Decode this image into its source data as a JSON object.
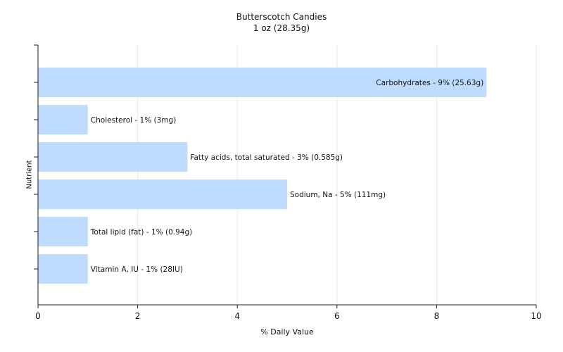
{
  "chart_data": {
    "type": "bar",
    "orientation": "horizontal",
    "title": "Butterscotch Candies",
    "subtitle": "1 oz (28.35g)",
    "xlabel": "% Daily Value",
    "ylabel": "Nutrient",
    "xlim": [
      0,
      10
    ],
    "xticks": [
      0,
      2,
      4,
      6,
      8,
      10
    ],
    "grid": true,
    "legend": "none",
    "bar_color": "#bfdcff",
    "categories": [
      "Carbohydrates",
      "Cholesterol",
      "Fatty acids, total saturated",
      "Sodium, Na",
      "Total lipid (fat)",
      "Vitamin A, IU"
    ],
    "values": [
      9,
      1,
      3,
      5,
      1,
      1
    ],
    "bar_labels": [
      "Carbohydrates - 9% (25.63g)",
      "Cholesterol - 1% (3mg)",
      "Fatty acids, total saturated - 3% (0.585g)",
      "Sodium, Na - 5% (111mg)",
      "Total lipid (fat) - 1% (0.94g)",
      "Vitamin A, IU - 1% (28IU)"
    ]
  }
}
